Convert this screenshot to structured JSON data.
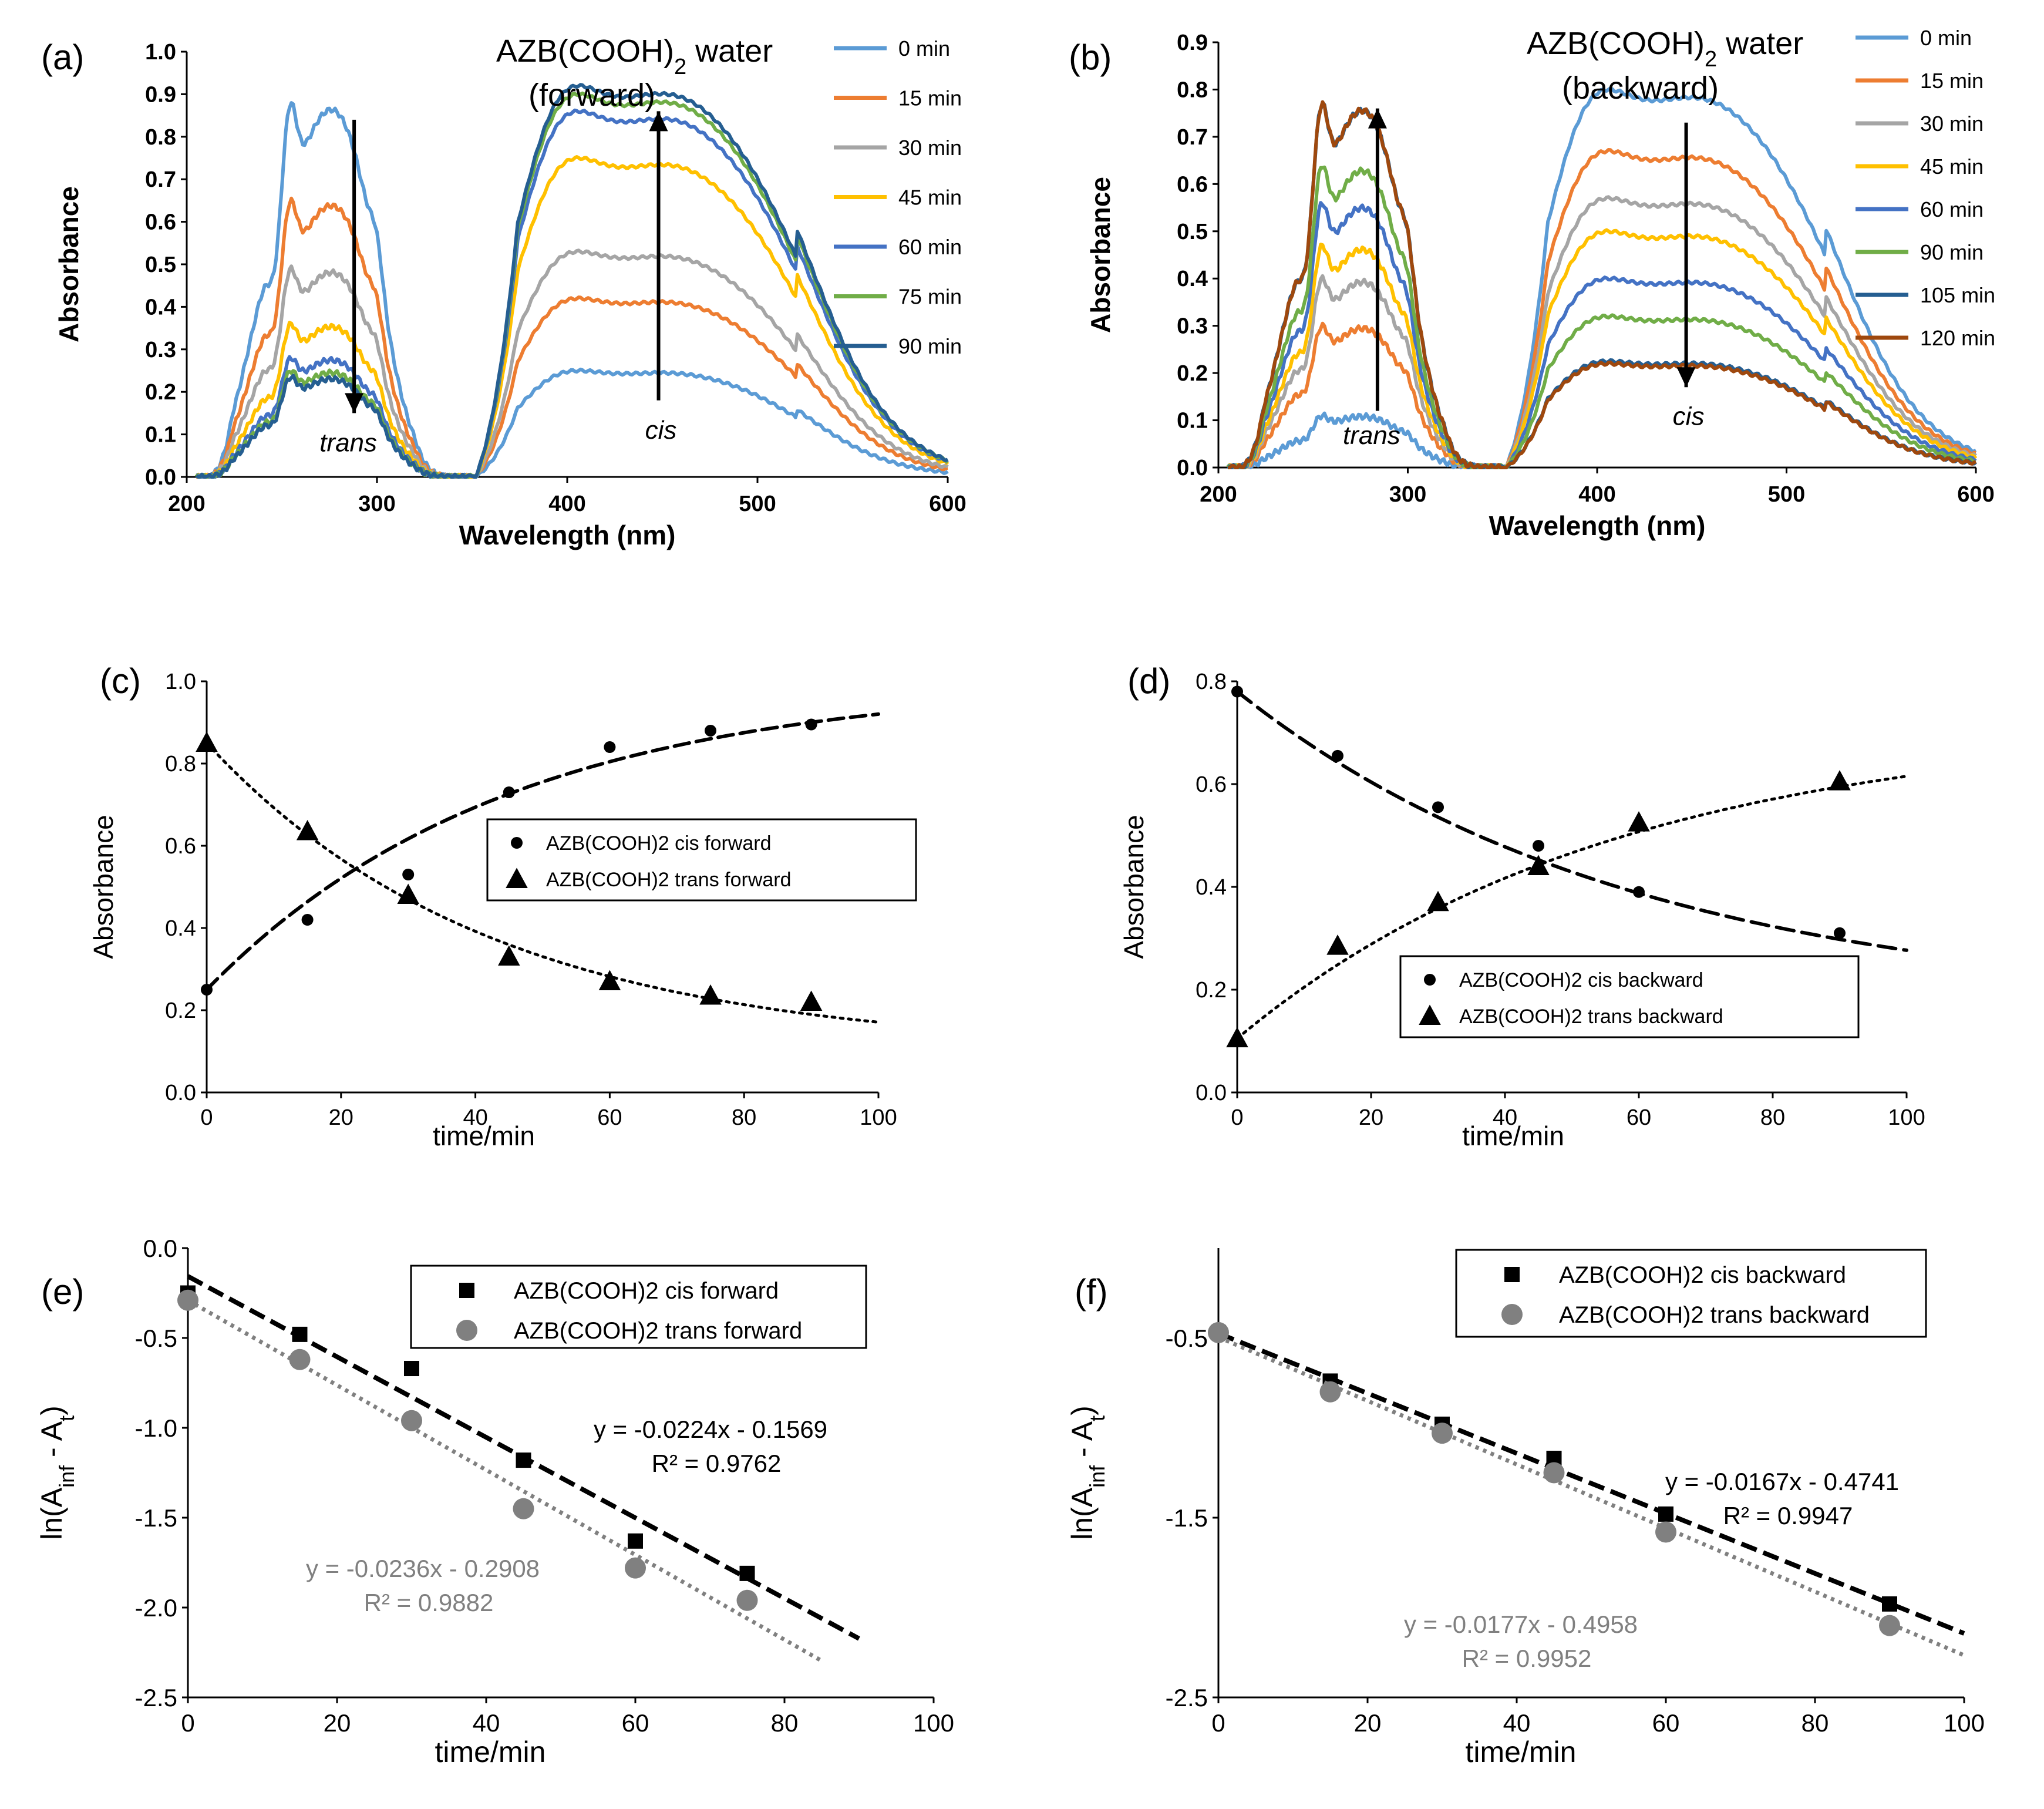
{
  "figure": {
    "panels": [
      {
        "id": "a",
        "label": "(a)"
      },
      {
        "id": "b",
        "label": "(b)"
      },
      {
        "id": "c",
        "label": "(c)"
      },
      {
        "id": "d",
        "label": "(d)"
      },
      {
        "id": "e",
        "label": "(e)"
      },
      {
        "id": "f",
        "label": "(f)"
      }
    ]
  },
  "chart_data": [
    {
      "panel": "a",
      "type": "line",
      "title": "AZB(COOH)",
      "title_subscript": "2",
      "title_suffix": " water",
      "subtitle": "(forward)",
      "xlabel": "Wavelength (nm)",
      "ylabel": "Absorbance",
      "xlim": [
        200,
        600
      ],
      "ylim": [
        0,
        1.0
      ],
      "xticks": [
        "200",
        "300",
        "400",
        "500",
        "600"
      ],
      "yticks": [
        "0.0",
        "0.1",
        "0.2",
        "0.3",
        "0.4",
        "0.5",
        "0.6",
        "0.7",
        "0.8",
        "0.9",
        "1.0"
      ],
      "annotations": {
        "trans": "trans",
        "cis": "cis"
      },
      "colors": [
        "#5b9bd5",
        "#ed7d31",
        "#a5a5a5",
        "#ffc000",
        "#4472c4",
        "#70ad47",
        "#255e91"
      ],
      "series": [
        {
          "name": "0 min",
          "trans_peak": 0.88,
          "cis_peak": 0.25
        },
        {
          "name": "15 min",
          "trans_peak": 0.65,
          "cis_peak": 0.42
        },
        {
          "name": "30 min",
          "trans_peak": 0.49,
          "cis_peak": 0.53
        },
        {
          "name": "45 min",
          "trans_peak": 0.36,
          "cis_peak": 0.75
        },
        {
          "name": "60 min",
          "trans_peak": 0.28,
          "cis_peak": 0.86
        },
        {
          "name": "75 min",
          "trans_peak": 0.25,
          "cis_peak": 0.9
        },
        {
          "name": "90 min",
          "trans_peak": 0.235,
          "cis_peak": 0.92
        }
      ]
    },
    {
      "panel": "b",
      "type": "line",
      "title": "AZB(COOH)",
      "title_subscript": "2",
      "title_suffix": " water",
      "subtitle": "(backward)",
      "xlabel": "Wavelength (nm)",
      "ylabel": "Absorbance",
      "xlim": [
        200,
        600
      ],
      "ylim": [
        0,
        0.9
      ],
      "xticks": [
        "200",
        "300",
        "400",
        "500",
        "600"
      ],
      "yticks": [
        "0.0",
        "0.1",
        "0.2",
        "0.3",
        "0.4",
        "0.5",
        "0.6",
        "0.7",
        "0.8",
        "0.9"
      ],
      "annotations": {
        "trans": "trans",
        "cis": "cis"
      },
      "colors": [
        "#5b9bd5",
        "#ed7d31",
        "#a5a5a5",
        "#ffc000",
        "#4472c4",
        "#70ad47",
        "#255e91",
        "#9e480e"
      ],
      "series": [
        {
          "name": "0 min",
          "trans_peak": 0.11,
          "cis_peak": 0.8
        },
        {
          "name": "15 min",
          "trans_peak": 0.3,
          "cis_peak": 0.67
        },
        {
          "name": "30 min",
          "trans_peak": 0.4,
          "cis_peak": 0.57
        },
        {
          "name": "45 min",
          "trans_peak": 0.47,
          "cis_peak": 0.5
        },
        {
          "name": "60 min",
          "trans_peak": 0.56,
          "cis_peak": 0.4
        },
        {
          "name": "90 min",
          "trans_peak": 0.64,
          "cis_peak": 0.32
        },
        {
          "name": "105 min",
          "trans_peak": 0.77,
          "cis_peak": 0.225
        },
        {
          "name": "120 min",
          "trans_peak": 0.77,
          "cis_peak": 0.22
        }
      ]
    },
    {
      "panel": "c",
      "type": "scatter",
      "xlabel": "time/min",
      "ylabel": "Absorbance",
      "xlim": [
        0,
        100
      ],
      "ylim": [
        0,
        1.0
      ],
      "xticks": [
        "0",
        "20",
        "40",
        "60",
        "80",
        "100"
      ],
      "yticks": [
        "0.0",
        "0.2",
        "0.4",
        "0.6",
        "0.8",
        "1.0"
      ],
      "series": [
        {
          "name": "AZB(COOH)2 cis forward",
          "marker": "circle",
          "x": [
            0,
            15,
            30,
            45,
            60,
            75,
            90
          ],
          "y": [
            0.25,
            0.42,
            0.53,
            0.73,
            0.84,
            0.88,
            0.895
          ],
          "fit": {
            "type": "exp-rise",
            "a_inf": 1.0,
            "a0": 0.25,
            "k": 0.0224
          }
        },
        {
          "name": "AZB(COOH)2 trans forward",
          "marker": "triangle",
          "x": [
            0,
            15,
            30,
            45,
            60,
            75,
            90
          ],
          "y": [
            0.85,
            0.635,
            0.48,
            0.33,
            0.27,
            0.235,
            0.22
          ],
          "fit": {
            "type": "exp-decay",
            "a_inf": 0.1,
            "a0": 0.85,
            "k": 0.0236
          }
        }
      ]
    },
    {
      "panel": "d",
      "type": "scatter",
      "xlabel": "time/min",
      "ylabel": "Absorbance",
      "xlim": [
        0,
        100
      ],
      "ylim": [
        0,
        0.8
      ],
      "xticks": [
        "0",
        "20",
        "40",
        "60",
        "80",
        "100"
      ],
      "yticks": [
        "0.0",
        "0.2",
        "0.4",
        "0.6",
        "0.8"
      ],
      "series": [
        {
          "name": "AZB(COOH)2 cis backward",
          "marker": "circle",
          "x": [
            0,
            15,
            30,
            45,
            60,
            90
          ],
          "y": [
            0.78,
            0.655,
            0.555,
            0.48,
            0.39,
            0.31
          ],
          "fit": {
            "type": "exp-decay",
            "a_inf": 0.16,
            "a0": 0.78,
            "k": 0.0167
          }
        },
        {
          "name": "AZB(COOH)2 trans backward",
          "marker": "triangle",
          "x": [
            0,
            15,
            30,
            45,
            60,
            90
          ],
          "y": [
            0.105,
            0.285,
            0.37,
            0.44,
            0.525,
            0.605
          ],
          "fit": {
            "type": "exp-rise",
            "a_inf": 0.72,
            "a0": 0.105,
            "k": 0.0177
          }
        }
      ]
    },
    {
      "panel": "e",
      "type": "scatter",
      "xlabel": "time/min",
      "ylabel": "ln(A",
      "ylabel_sub1": "inf",
      "ylabel_mid": " - A",
      "ylabel_sub2": "t",
      "ylabel_end": ")",
      "xlim": [
        0,
        100
      ],
      "ylim": [
        -2.5,
        0.0
      ],
      "xticks": [
        "0",
        "20",
        "40",
        "60",
        "80",
        "100"
      ],
      "yticks": [
        "-2.5",
        "-2.0",
        "-1.5",
        "-1.0",
        "-0.5",
        "0.0"
      ],
      "series": [
        {
          "name": "AZB(COOH)2 cis forward",
          "marker": "square",
          "color": "#000000",
          "x": [
            0,
            15,
            30,
            45,
            60,
            75
          ],
          "y": [
            -0.25,
            -0.48,
            -0.67,
            -1.18,
            -1.63,
            -1.81
          ],
          "fit": {
            "slope": -0.0224,
            "intercept": -0.1569,
            "x_range": [
              0,
              90
            ]
          },
          "equation": "y = -0.0224x - 0.1569",
          "r2": "R² = 0.9762"
        },
        {
          "name": "AZB(COOH)2 trans forward",
          "marker": "circle",
          "color": "#808080",
          "x": [
            0,
            15,
            30,
            45,
            60,
            75
          ],
          "y": [
            -0.29,
            -0.62,
            -0.96,
            -1.45,
            -1.78,
            -1.96
          ],
          "fit": {
            "slope": -0.0236,
            "intercept": -0.2908,
            "x_range": [
              0,
              85
            ]
          },
          "equation": "y = -0.0236x - 0.2908",
          "r2": "R² = 0.9882"
        }
      ]
    },
    {
      "panel": "f",
      "type": "scatter",
      "xlabel": "time/min",
      "ylabel": "ln(A",
      "ylabel_sub1": "inf",
      "ylabel_mid": " - A",
      "ylabel_sub2": "t",
      "ylabel_end": ")",
      "xlim": [
        0,
        100
      ],
      "ylim": [
        -2.5,
        0.0
      ],
      "xticks": [
        "0",
        "20",
        "40",
        "60",
        "80",
        "100"
      ],
      "yticks": [
        "-2.5",
        "-1.5",
        "-0.5"
      ],
      "series": [
        {
          "name": "AZB(COOH)2 cis backward",
          "marker": "square",
          "color": "#000000",
          "x": [
            0,
            15,
            30,
            45,
            60,
            90
          ],
          "y": [
            -0.47,
            -0.74,
            -0.98,
            -1.17,
            -1.48,
            -1.98
          ],
          "fit": {
            "slope": -0.0167,
            "intercept": -0.4741,
            "x_range": [
              0,
              100
            ]
          },
          "equation": "y = -0.0167x - 0.4741",
          "r2": "R² = 0.9947"
        },
        {
          "name": "AZB(COOH)2 trans backward",
          "marker": "circle",
          "color": "#808080",
          "x": [
            0,
            15,
            30,
            45,
            60,
            90
          ],
          "y": [
            -0.47,
            -0.8,
            -1.03,
            -1.25,
            -1.58,
            -2.1
          ],
          "fit": {
            "slope": -0.0177,
            "intercept": -0.4958,
            "x_range": [
              0,
              100
            ]
          },
          "equation": "y = -0.0177x - 0.4958",
          "r2": "R² = 0.9952"
        }
      ]
    }
  ]
}
